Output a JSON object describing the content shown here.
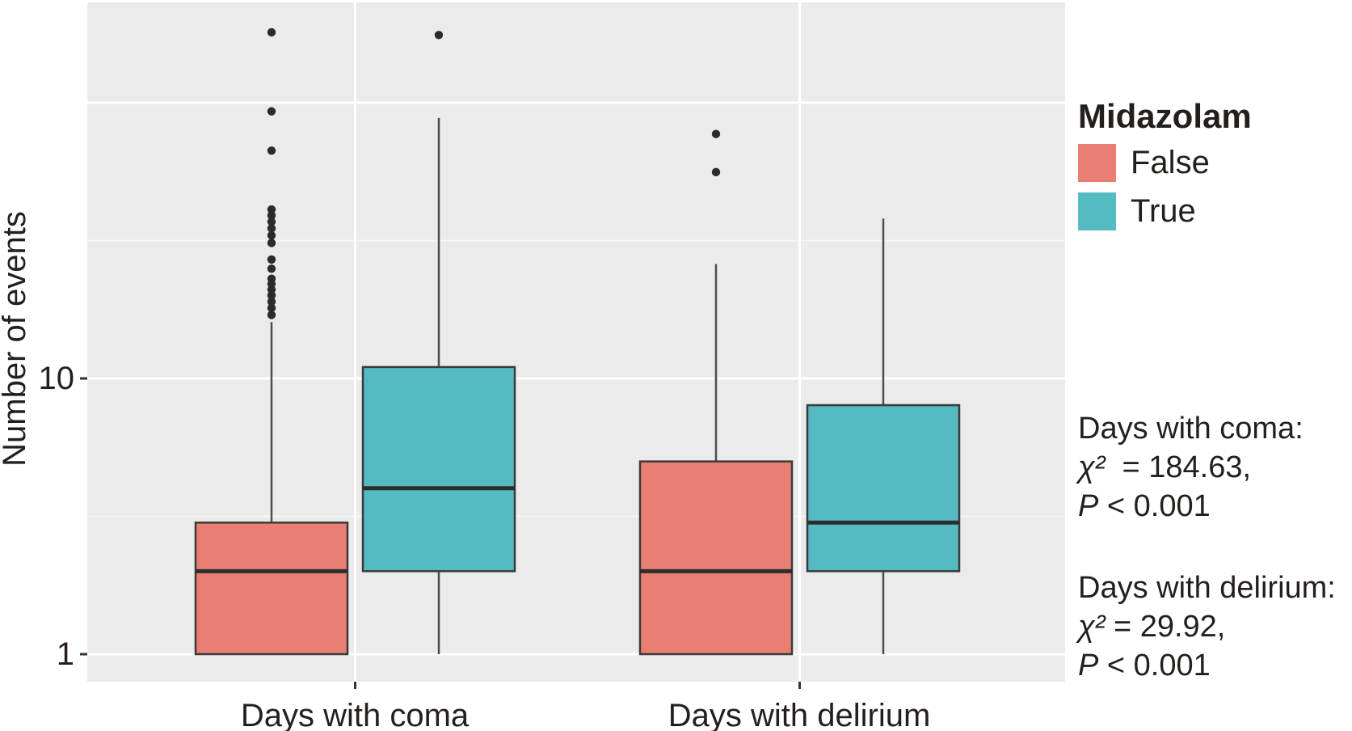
{
  "chart_data": {
    "type": "boxplot",
    "title": "",
    "xlabel": "",
    "ylabel": "Number of events",
    "y_scale": "log10",
    "ylim": [
      0.8,
      231
    ],
    "grid": true,
    "y_ticks": [
      1,
      10
    ],
    "y_gridlines_major": [
      1,
      10,
      100
    ],
    "y_gridlines_minor": [
      3.162,
      31.62
    ],
    "categories": [
      "Days with coma",
      "Days with delirium"
    ],
    "legend": {
      "title": "Midazolam",
      "position": "right",
      "entries": [
        {
          "label": "False",
          "color": "#E87F72"
        },
        {
          "label": "True",
          "color": "#55BBC3"
        }
      ]
    },
    "series": [
      {
        "name": "False",
        "color": "#E87F72",
        "boxes": [
          {
            "category": "Days with coma",
            "whisker_low": 1,
            "q1": 1,
            "median": 2,
            "q3": 3,
            "whisker_high": 16,
            "outliers": [
              17,
              18,
              19,
              20,
              21,
              22,
              23,
              25,
              27,
              31,
              33,
              35,
              37,
              39,
              41,
              67,
              93,
              180
            ]
          },
          {
            "category": "Days with delirium",
            "whisker_low": 1,
            "q1": 1,
            "median": 2,
            "q3": 5,
            "whisker_high": 26,
            "outliers": [
              56,
              77
            ]
          }
        ]
      },
      {
        "name": "True",
        "color": "#55BBC3",
        "boxes": [
          {
            "category": "Days with coma",
            "whisker_low": 1,
            "q1": 2,
            "median": 4,
            "q3": 11,
            "whisker_high": 88,
            "outliers": [
              176
            ]
          },
          {
            "category": "Days with delirium",
            "whisker_low": 1,
            "q1": 2,
            "median": 3,
            "q3": 8,
            "whisker_high": 38,
            "outliers": []
          }
        ]
      }
    ],
    "annotations": [
      {
        "heading": "Days with coma:",
        "chi_symbol": "χ²",
        "chi_value": "  = 184.63,",
        "p_symbol": "P",
        "p_value": " < 0.001"
      },
      {
        "heading": "Days with delirium:",
        "chi_symbol": "χ²",
        "chi_value": " = 29.92,",
        "p_symbol": "P",
        "p_value": " < 0.001"
      }
    ],
    "style_colors": {
      "panel_background": "#EBEBEB",
      "gridline_major": "#FFFFFF",
      "gridline_minor": "#F6F6F6",
      "box_stroke": "#3A3A3A",
      "median_stroke": "#2D2D2D",
      "whisker_stroke": "#4D4D4D",
      "outlier_fill": "#2B2B2B",
      "tick_stroke": "#333333"
    }
  }
}
